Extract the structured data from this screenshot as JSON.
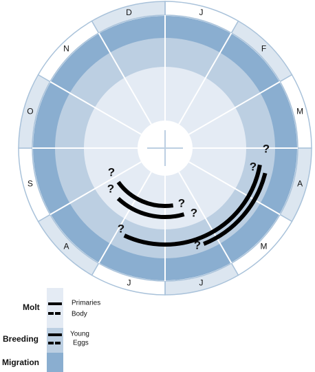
{
  "months": [
    "J",
    "F",
    "M",
    "A",
    "M",
    "J",
    "J",
    "A",
    "S",
    "O",
    "N",
    "D"
  ],
  "question_marks": [
    "?",
    "?",
    "?",
    "?",
    "?",
    "?",
    "?",
    "?"
  ],
  "legend": {
    "molt": "Molt",
    "primaries": "Primaries",
    "body": "Body",
    "breeding": "Breeding",
    "young": "Young",
    "eggs": "Eggs",
    "migration": "Migration"
  }
}
